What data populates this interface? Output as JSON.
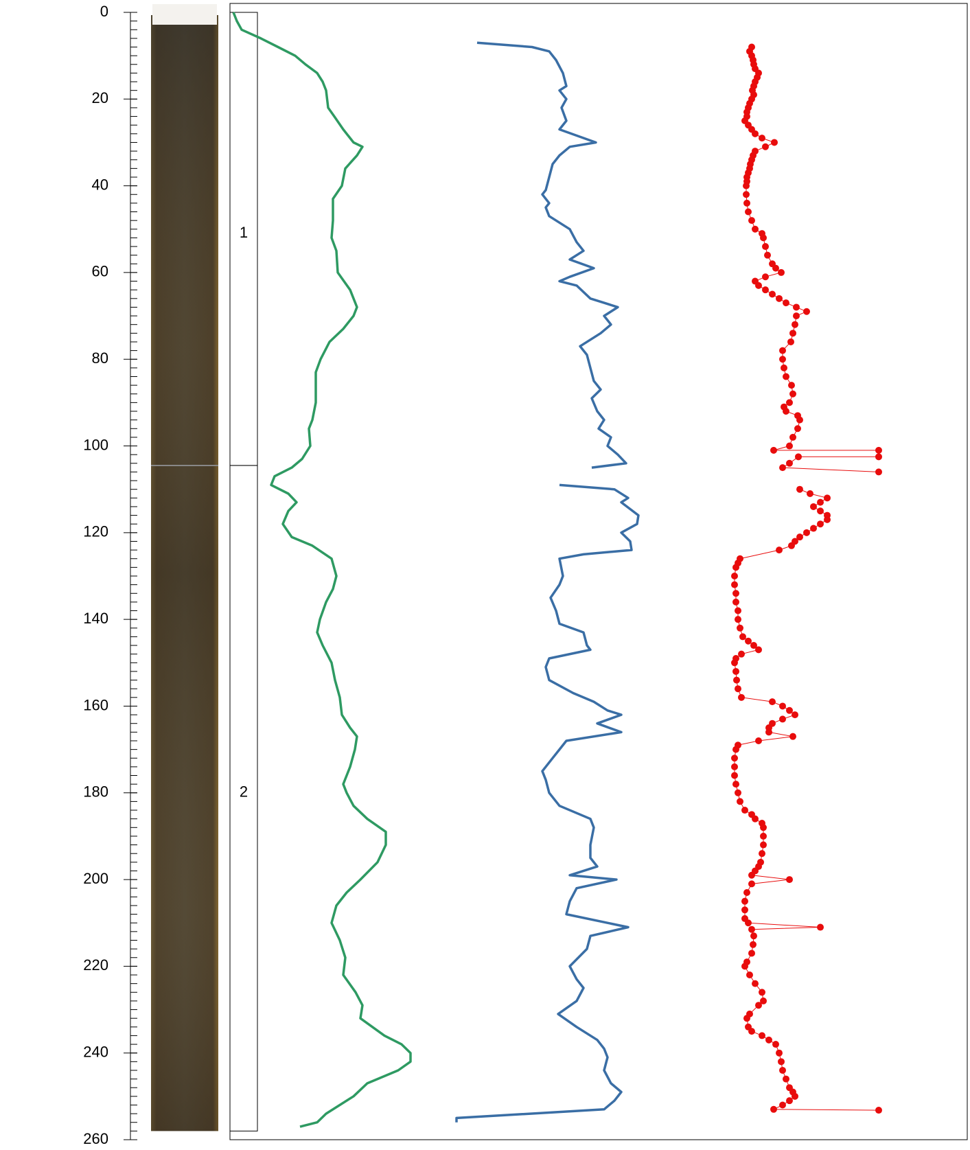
{
  "chart_data": {
    "type": "depth-log",
    "ylim": [
      0,
      260
    ],
    "xlim": [
      0,
      1075
    ],
    "yticks": [
      0,
      20,
      40,
      60,
      80,
      100,
      120,
      140,
      160,
      180,
      200,
      220,
      240,
      260
    ],
    "yminorticks": [
      0,
      2,
      4,
      6,
      8,
      10,
      12,
      14,
      16,
      18,
      20,
      22,
      24,
      26,
      28,
      30,
      32,
      34,
      36,
      38,
      40,
      42,
      44,
      46,
      48,
      50,
      52,
      54,
      56,
      58,
      60,
      62,
      64,
      66,
      68,
      70,
      72,
      74,
      76,
      78,
      80,
      82,
      84,
      86,
      88,
      90,
      92,
      94,
      96,
      98,
      100,
      102,
      104,
      106,
      108,
      110,
      112,
      114,
      116,
      118,
      120,
      122,
      124,
      126,
      128,
      130,
      132,
      134,
      136,
      138,
      140,
      142,
      144,
      146,
      148,
      150,
      152,
      154,
      156,
      158,
      160,
      162,
      164,
      166,
      168,
      170,
      172,
      174,
      176,
      178,
      180,
      182,
      184,
      186,
      188,
      190,
      192,
      194,
      196,
      198,
      200,
      202,
      204,
      206,
      208,
      210,
      212,
      214,
      216,
      218,
      220,
      222,
      224,
      226,
      228,
      230,
      232,
      234,
      236,
      238,
      240,
      242,
      244,
      246,
      248,
      250,
      252,
      254,
      256,
      258,
      260
    ],
    "units": [
      {
        "label": "1",
        "top": 0,
        "bottom": 104.5
      },
      {
        "label": "2",
        "top": 104.5,
        "bottom": 258
      }
    ],
    "series": [
      {
        "color": "#2e9a62",
        "y": [
          0,
          2,
          4,
          6,
          8,
          10,
          12,
          14,
          16,
          18,
          22,
          24,
          27,
          30,
          31,
          33,
          36,
          40,
          43,
          48,
          52,
          55,
          60,
          64,
          68,
          70,
          73,
          76,
          80,
          83,
          90,
          94,
          96,
          100,
          103,
          105,
          107,
          109,
          111,
          113,
          115,
          118,
          121,
          123,
          126,
          130,
          133,
          136,
          140,
          143,
          146,
          150,
          154,
          158,
          162,
          165,
          167,
          170,
          174,
          178,
          180,
          183,
          186,
          189,
          192,
          196,
          200,
          203,
          206,
          210,
          214,
          218,
          222,
          226,
          229,
          232,
          236,
          238,
          240,
          242,
          244,
          247,
          250,
          254,
          256,
          257
        ],
        "x": [
          5,
          10,
          17,
          45,
          70,
          95,
          110,
          127,
          135,
          140,
          143,
          152,
          165,
          180,
          193,
          185,
          168,
          163,
          150,
          150,
          148,
          155,
          157,
          175,
          185,
          180,
          165,
          145,
          132,
          125,
          125,
          120,
          115,
          117,
          105,
          90,
          65,
          60,
          85,
          97,
          85,
          77,
          90,
          120,
          148,
          155,
          150,
          140,
          131,
          127,
          135,
          148,
          153,
          160,
          163,
          175,
          185,
          182,
          175,
          165,
          170,
          180,
          200,
          227,
          227,
          215,
          190,
          170,
          155,
          148,
          160,
          168,
          165,
          183,
          193,
          190,
          225,
          250,
          263,
          263,
          245,
          200,
          180,
          140,
          127,
          102
        ]
      },
      {
        "color": "#3a6ea5",
        "y": [
          7,
          8,
          9,
          11,
          14,
          17,
          18,
          20,
          22,
          25,
          27,
          30,
          31,
          33,
          35,
          38,
          41,
          42,
          44,
          45,
          47,
          50,
          53,
          55,
          57,
          59,
          61,
          62,
          63,
          66,
          67,
          68,
          70,
          72,
          74,
          77,
          79,
          82,
          85,
          87,
          89,
          92,
          94,
          96,
          98,
          100,
          102,
          104,
          105,
          107,
          109,
          110,
          112,
          113,
          116,
          118,
          120,
          122,
          124,
          125,
          126,
          130,
          132,
          135,
          138,
          141,
          143,
          146,
          147,
          149,
          151,
          154,
          157,
          159,
          161,
          162,
          164,
          166,
          168,
          170,
          172,
          175,
          177,
          180,
          183,
          186,
          188,
          192,
          195,
          197,
          199,
          200,
          202,
          205,
          208,
          211,
          213,
          216,
          220,
          223,
          225,
          228,
          231,
          234,
          237,
          239,
          241,
          244,
          247,
          249,
          251,
          253,
          255,
          256
        ],
        "x": [
          360,
          440,
          465,
          475,
          485,
          490,
          480,
          490,
          483,
          490,
          480,
          533,
          495,
          480,
          470,
          465,
          460,
          455,
          465,
          460,
          465,
          495,
          505,
          515,
          495,
          530,
          495,
          480,
          505,
          525,
          545,
          565,
          545,
          555,
          540,
          510,
          520,
          525,
          530,
          540,
          527,
          535,
          545,
          537,
          555,
          550,
          565,
          577,
          527,
          null,
          480,
          560,
          580,
          570,
          595,
          593,
          570,
          583,
          585,
          515,
          480,
          485,
          480,
          467,
          475,
          480,
          515,
          520,
          525,
          465,
          460,
          465,
          500,
          530,
          550,
          570,
          535,
          570,
          490,
          480,
          470,
          455,
          460,
          465,
          480,
          525,
          530,
          525,
          525,
          535,
          495,
          563,
          505,
          495,
          490,
          580,
          525,
          520,
          495,
          505,
          515,
          505,
          478,
          505,
          535,
          545,
          550,
          545,
          555,
          570,
          560,
          545,
          330,
          330
        ]
      },
      {
        "color": "#e80c0c",
        "markers": true,
        "y": [
          8,
          9,
          10,
          11,
          12,
          13,
          14,
          15,
          16,
          17,
          18,
          19,
          20,
          21,
          22,
          23,
          24,
          25,
          26,
          27,
          28,
          29,
          30,
          31,
          32,
          33,
          34,
          35,
          36,
          37,
          38,
          39,
          40,
          42,
          44,
          46,
          48,
          50,
          51,
          52,
          54,
          56,
          58,
          59,
          60,
          61,
          62,
          63,
          64,
          65,
          66,
          67,
          68,
          69,
          70,
          72,
          74,
          76,
          78,
          80,
          82,
          84,
          86,
          88,
          90,
          91,
          92,
          93,
          94,
          96,
          98,
          100,
          101,
          101,
          102.5,
          102.5,
          104,
          105,
          106,
          108,
          110,
          111,
          112,
          113,
          114,
          115,
          116,
          117,
          118,
          119,
          120,
          121,
          122,
          123,
          124,
          126,
          127,
          128,
          130,
          132,
          134,
          136,
          138,
          140,
          142,
          144,
          145,
          146,
          147,
          148,
          149,
          150,
          152,
          154,
          156,
          158,
          159,
          160,
          161,
          162,
          163,
          164,
          165,
          166,
          167,
          168,
          169,
          170,
          172,
          174,
          176,
          178,
          180,
          182,
          184,
          185,
          186,
          187,
          188,
          190,
          192,
          194,
          196,
          197,
          198,
          199,
          200,
          201,
          203,
          205,
          207,
          209,
          210,
          211,
          211.5,
          213,
          215,
          217,
          219,
          220,
          222,
          224,
          226,
          228,
          229,
          231,
          232,
          234,
          235,
          236,
          237,
          238,
          240,
          242,
          244,
          246,
          248,
          249,
          250,
          251,
          252,
          253,
          253.2
        ],
        "x": [
          760,
          757,
          760,
          762,
          763,
          765,
          770,
          768,
          765,
          763,
          761,
          763,
          760,
          757,
          755,
          753,
          753,
          750,
          755,
          760,
          765,
          775,
          793,
          780,
          765,
          762,
          760,
          758,
          757,
          755,
          753,
          753,
          752,
          752,
          753,
          755,
          760,
          765,
          775,
          777,
          780,
          783,
          790,
          795,
          803,
          780,
          765,
          770,
          780,
          790,
          800,
          810,
          825,
          840,
          825,
          823,
          820,
          817,
          805,
          805,
          807,
          810,
          818,
          820,
          815,
          807,
          810,
          827,
          830,
          827,
          820,
          815,
          792,
          945,
          945,
          828,
          815,
          805,
          945,
          null,
          830,
          845,
          870,
          860,
          850,
          860,
          870,
          870,
          860,
          850,
          840,
          830,
          823,
          818,
          800,
          743,
          740,
          737,
          735,
          735,
          737,
          737,
          740,
          740,
          743,
          747,
          755,
          763,
          770,
          745,
          737,
          735,
          737,
          738,
          740,
          745,
          790,
          805,
          815,
          823,
          805,
          790,
          785,
          785,
          820,
          770,
          740,
          737,
          735,
          735,
          735,
          737,
          740,
          743,
          750,
          760,
          765,
          775,
          777,
          777,
          777,
          775,
          773,
          770,
          765,
          760,
          815,
          760,
          753,
          750,
          750,
          750,
          755,
          860,
          760,
          763,
          762,
          760,
          753,
          750,
          757,
          765,
          775,
          777,
          770,
          757,
          753,
          755,
          760,
          775,
          785,
          795,
          800,
          803,
          805,
          810,
          815,
          820,
          823,
          815,
          805,
          792,
          945
        ]
      }
    ]
  }
}
